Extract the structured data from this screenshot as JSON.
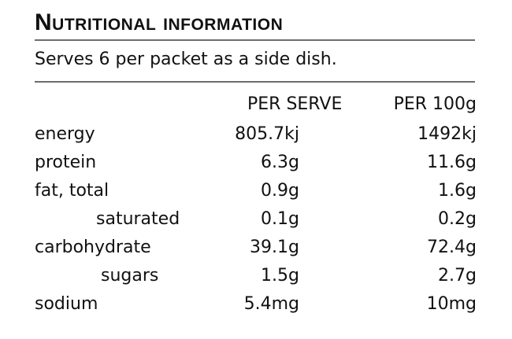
{
  "panel": {
    "title": "Nutritional information",
    "serves": "Serves 6 per packet as a side dish."
  },
  "table": {
    "columns": [
      "PER SERVE",
      "PER 100g"
    ],
    "rows": [
      {
        "label": "energy",
        "per_serve": "805.7kj",
        "per_100g": "1492kj"
      },
      {
        "label": "protein",
        "per_serve": "6.3g",
        "per_100g": "11.6g"
      },
      {
        "label": "fat, total",
        "per_serve": "0.9g",
        "per_100g": "1.6g"
      },
      {
        "label": "saturated",
        "per_serve": "0.1g",
        "per_100g": "0.2g"
      },
      {
        "label": "carbohydrate",
        "per_serve": "39.1g",
        "per_100g": "72.4g"
      },
      {
        "label": "sugars",
        "per_serve": "1.5g",
        "per_100g": "2.7g"
      },
      {
        "label": "sodium",
        "per_serve": "5.4mg",
        "per_100g": "10mg"
      }
    ]
  }
}
